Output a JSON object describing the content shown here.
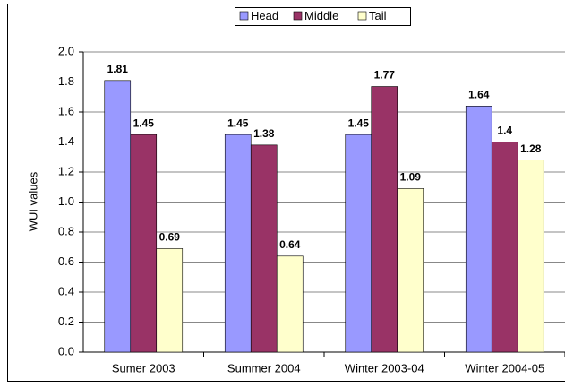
{
  "chart_data": {
    "type": "bar",
    "y_label": "WUI values",
    "categories": [
      "Sumer 2003",
      "Summer 2004",
      "Winter 2003-04",
      "Winter 2004-05"
    ],
    "series": [
      {
        "name": "Head",
        "color": "#9999ff",
        "values": [
          1.81,
          1.45,
          1.45,
          1.64
        ]
      },
      {
        "name": "Middle",
        "color": "#993366",
        "values": [
          1.45,
          1.38,
          1.77,
          1.4
        ]
      },
      {
        "name": "Tail",
        "color": "#ffffcc",
        "values": [
          0.69,
          0.64,
          1.09,
          1.28
        ]
      }
    ],
    "ylim": [
      0,
      2
    ],
    "yticks": [
      {
        "value": 0,
        "label": "0.0"
      },
      0.2,
      0.4,
      0.6,
      0.8,
      {
        "value": 1,
        "label": "1.0"
      },
      1.2,
      1.4,
      1.6,
      1.8,
      {
        "value": 2,
        "label": "2.0"
      }
    ],
    "grid": true,
    "legend": "top"
  }
}
